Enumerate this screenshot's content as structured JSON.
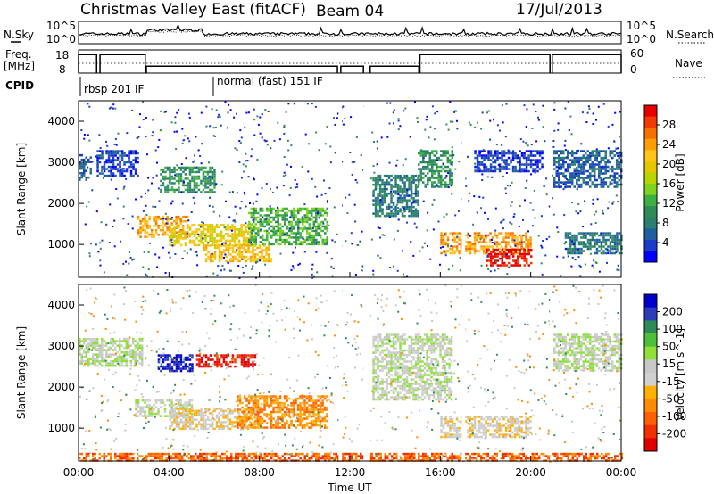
{
  "header": {
    "station": "Christmas Valley East",
    "algorithm": "(fitACF)",
    "beam": "Beam 04",
    "date": "17/Jul/2013"
  },
  "aux_panels": {
    "nsky_label": "N.Sky",
    "nsearch_label": "N.Search",
    "noise_ticks": [
      "10^5",
      "10^0"
    ],
    "freq_label": "Freq.",
    "freq_unit": "[MHz]",
    "freq_ticks": [
      "18",
      "8"
    ],
    "nave_label": "Nave",
    "nave_ticks": [
      "60",
      "0"
    ],
    "cpid_label": "CPID",
    "cpid_segments": [
      {
        "label": "rbsp 201 IF",
        "start_hour": 0
      },
      {
        "label": "normal (fast) 151 IF",
        "start_hour": 6
      }
    ]
  },
  "axes": {
    "xlabel": "Time UT",
    "xticks": [
      "00:00",
      "04:00",
      "08:00",
      "12:00",
      "16:00",
      "20:00",
      "00:00"
    ],
    "ylabel": "Slant Range [km]",
    "yticks": [
      "4000",
      "3000",
      "2000",
      "1000"
    ]
  },
  "colorbars": {
    "power": {
      "label": "Power [dB]",
      "ticks": [
        "28",
        "24",
        "20",
        "16",
        "12",
        "8",
        "4"
      ],
      "colors": [
        "#e60000",
        "#f23a00",
        "#f76f00",
        "#ff9e00",
        "#ffc31a",
        "#e6c800",
        "#b9d400",
        "#7ed321",
        "#3cb043",
        "#2e8b57",
        "#2a7f6f",
        "#1f5fa0",
        "#1a3cc8",
        "#0000ff"
      ]
    },
    "velocity": {
      "label": "Velocity [m s^-1]",
      "ticks": [
        "200",
        "100",
        "50",
        "15",
        "-15",
        "-50",
        "-100",
        "-200"
      ],
      "colors": [
        "#0000cc",
        "#2a3cb8",
        "#2e8b57",
        "#4cc03a",
        "#8fe03a",
        "#c8c8c8",
        "#d0d0d0",
        "#ffb000",
        "#ff8c00",
        "#ff6000",
        "#f03000",
        "#e00000"
      ]
    }
  },
  "chart_data": [
    {
      "type": "line",
      "title": "N.Sky / N.Search",
      "x_range_hours": [
        0,
        24
      ],
      "y_scale": "log",
      "ylim": [
        1,
        100000
      ]
    },
    {
      "type": "line",
      "title": "Freq. / Nave",
      "x_range_hours": [
        0,
        24
      ],
      "ylim_freq_mhz": [
        8,
        18
      ],
      "ylim_nave": [
        0,
        60
      ],
      "freq_segments": [
        {
          "start_hour": 0.0,
          "end_hour": 0.8,
          "freq_mhz": 16
        },
        {
          "start_hour": 0.95,
          "end_hour": 2.95,
          "freq_mhz": 16
        },
        {
          "start_hour": 3.0,
          "end_hour": 11.45,
          "freq_mhz": 11
        },
        {
          "start_hour": 11.6,
          "end_hour": 12.6,
          "freq_mhz": 11
        },
        {
          "start_hour": 12.9,
          "end_hour": 15.05,
          "freq_mhz": 11
        },
        {
          "start_hour": 15.1,
          "end_hour": 20.85,
          "freq_mhz": 16
        },
        {
          "start_hour": 20.95,
          "end_hour": 24.0,
          "freq_mhz": 16
        }
      ]
    },
    {
      "type": "heatmap",
      "title": "Power",
      "x_range_hours": [
        0,
        24
      ],
      "ylim_km": [
        200,
        4500
      ],
      "colorbar": "power",
      "echo_regions": [
        {
          "start_hour": 0.0,
          "end_hour": 0.5,
          "range_min_km": 2600,
          "range_max_km": 3200,
          "level": 2
        },
        {
          "start_hour": 0.8,
          "end_hour": 2.6,
          "range_min_km": 2700,
          "range_max_km": 3300,
          "level": 1
        },
        {
          "start_hour": 2.6,
          "end_hour": 4.8,
          "range_min_km": 1200,
          "range_max_km": 1700,
          "level": 10
        },
        {
          "start_hour": 3.6,
          "end_hour": 6.0,
          "range_min_km": 2300,
          "range_max_km": 2900,
          "level": 4
        },
        {
          "start_hour": 4.0,
          "end_hour": 7.8,
          "range_min_km": 1000,
          "range_max_km": 1500,
          "level": 8
        },
        {
          "start_hour": 5.5,
          "end_hour": 8.5,
          "range_min_km": 600,
          "range_max_km": 1000,
          "level": 9
        },
        {
          "start_hour": 7.5,
          "end_hour": 11.0,
          "range_min_km": 1000,
          "range_max_km": 1900,
          "level": 5
        },
        {
          "start_hour": 13.0,
          "end_hour": 15.0,
          "range_min_km": 1700,
          "range_max_km": 2700,
          "level": 3
        },
        {
          "start_hour": 15.0,
          "end_hour": 16.5,
          "range_min_km": 2400,
          "range_max_km": 3300,
          "level": 4
        },
        {
          "start_hour": 16.0,
          "end_hour": 20.0,
          "range_min_km": 800,
          "range_max_km": 1300,
          "level": 10
        },
        {
          "start_hour": 18.0,
          "end_hour": 20.0,
          "range_min_km": 500,
          "range_max_km": 900,
          "level": 13
        },
        {
          "start_hour": 17.5,
          "end_hour": 20.5,
          "range_min_km": 2800,
          "range_max_km": 3300,
          "level": 1
        },
        {
          "start_hour": 21.0,
          "end_hour": 24.0,
          "range_min_km": 2400,
          "range_max_km": 3300,
          "level": 2
        },
        {
          "start_hour": 21.5,
          "end_hour": 24.0,
          "range_min_km": 800,
          "range_max_km": 1300,
          "level": 3
        }
      ]
    },
    {
      "type": "heatmap",
      "title": "Velocity",
      "x_range_hours": [
        0,
        24
      ],
      "ylim_km": [
        200,
        4500
      ],
      "colorbar": "velocity",
      "echo_regions": [
        {
          "start_hour": 0.0,
          "end_hour": 2.8,
          "range_min_km": 2500,
          "range_max_km": 3200,
          "level": 5
        },
        {
          "start_hour": 2.5,
          "end_hour": 5.0,
          "range_min_km": 1300,
          "range_max_km": 1700,
          "level": 5
        },
        {
          "start_hour": 3.5,
          "end_hour": 5.0,
          "range_min_km": 2400,
          "range_max_km": 2800,
          "level": 0
        },
        {
          "start_hour": 5.2,
          "end_hour": 7.8,
          "range_min_km": 2500,
          "range_max_km": 2800,
          "level": 11
        },
        {
          "start_hour": 4.0,
          "end_hour": 8.0,
          "range_min_km": 1000,
          "range_max_km": 1500,
          "level": 6
        },
        {
          "start_hour": 7.0,
          "end_hour": 11.0,
          "range_min_km": 1000,
          "range_max_km": 1800,
          "level": 8
        },
        {
          "start_hour": 13.0,
          "end_hour": 16.5,
          "range_min_km": 1700,
          "range_max_km": 3300,
          "level": 5
        },
        {
          "start_hour": 16.0,
          "end_hour": 20.0,
          "range_min_km": 800,
          "range_max_km": 1300,
          "level": 6
        },
        {
          "start_hour": 21.0,
          "end_hour": 24.0,
          "range_min_km": 2400,
          "range_max_km": 3300,
          "level": 5
        },
        {
          "start_hour": 0.0,
          "end_hour": 24.0,
          "range_min_km": 200,
          "range_max_km": 400,
          "level": 9
        }
      ]
    }
  ]
}
